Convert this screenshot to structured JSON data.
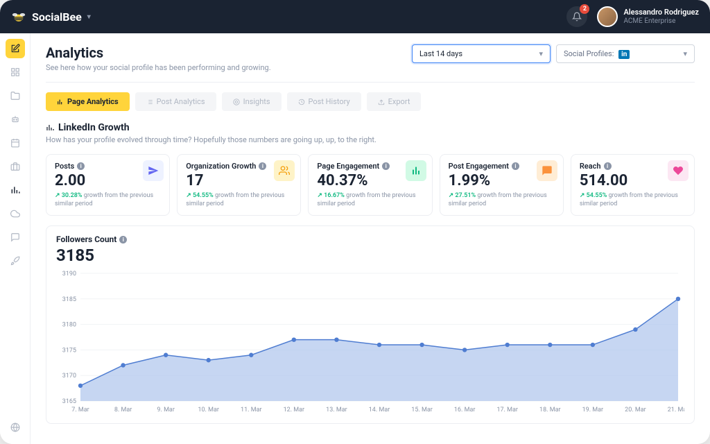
{
  "brand": "SocialBee",
  "notifications": {
    "count": "2"
  },
  "user": {
    "name": "Alessandro Rodriguez",
    "org": "ACME Enterprise"
  },
  "page": {
    "title": "Analytics",
    "subtitle": "See here how your social profile has been performing and growing."
  },
  "selectors": {
    "date_range": "Last 14 days",
    "profiles_prefix": "Social Profiles:",
    "profiles_value": "in"
  },
  "tabs": [
    {
      "label": "Page Analytics",
      "active": true
    },
    {
      "label": "Post Analytics"
    },
    {
      "label": "Insights"
    },
    {
      "label": "Post History"
    },
    {
      "label": "Export"
    }
  ],
  "section": {
    "title": "LinkedIn Growth",
    "subtitle": "How has your profile evolved through time? Hopefully those numbers are going up, up, to the right."
  },
  "meta_suffix": "growth from the previous similar period",
  "cards": [
    {
      "label": "Posts",
      "value": "2.00",
      "growth": "30.28%",
      "icon_bg": "#eef2ff",
      "icon_fg": "#6366f1",
      "icon": "plane"
    },
    {
      "label": "Organization Growth",
      "value": "17",
      "growth": "54.55%",
      "icon_bg": "#fef3c7",
      "icon_fg": "#f59e0b",
      "icon": "users"
    },
    {
      "label": "Page Engagement",
      "value": "40.37%",
      "growth": "16.67%",
      "icon_bg": "#d1fae5",
      "icon_fg": "#10b981",
      "icon": "bars"
    },
    {
      "label": "Post Engagement",
      "value": "1.99%",
      "growth": "27.51%",
      "icon_bg": "#ffedd5",
      "icon_fg": "#fb923c",
      "icon": "chat"
    },
    {
      "label": "Reach",
      "value": "514.00",
      "growth": "54.55%",
      "icon_bg": "#fce7f3",
      "icon_fg": "#ec4899",
      "icon": "heart"
    }
  ],
  "chart": {
    "title": "Followers Count",
    "value": "3185",
    "type": "area",
    "ylim": [
      3165,
      3190
    ],
    "ytick_step": 5,
    "x_labels": [
      "7. Mar",
      "8. Mar",
      "9. Mar",
      "10. Mar",
      "11. Mar",
      "12. Mar",
      "13. Mar",
      "14. Mar",
      "15. Mar",
      "16. Mar",
      "17. Mar",
      "18. Mar",
      "19. Mar",
      "20. Mar",
      "21. Mar"
    ],
    "values": [
      3168,
      3172,
      3174,
      3173,
      3174,
      3177,
      3177,
      3176,
      3176,
      3175,
      3176,
      3176,
      3176,
      3179,
      3185
    ],
    "line_color": "#4f7dd1",
    "fill_color": "#aec5ec",
    "fill_opacity": 0.7,
    "marker_color": "#4f7dd1",
    "marker_radius": 3.2,
    "grid_color": "#f1f3f6",
    "axis_label_color": "#8a94a6",
    "background_color": "#ffffff"
  }
}
